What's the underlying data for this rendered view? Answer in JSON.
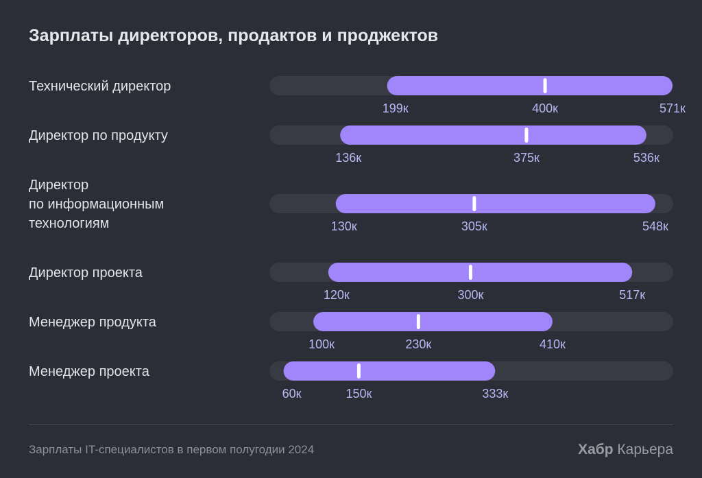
{
  "chart_data": {
    "type": "range-bar",
    "title": "Зарплаты директоров, продактов и проджектов",
    "unit_suffix": "к",
    "xlim": [
      30,
      572
    ],
    "rows": [
      {
        "label": [
          "Технический директор"
        ],
        "min": 199,
        "median": 400,
        "max": 571
      },
      {
        "label": [
          "Директор по продукту"
        ],
        "min": 136,
        "median": 375,
        "max": 536
      },
      {
        "label": [
          "Директор",
          "по информационным",
          "технологиям"
        ],
        "min": 130,
        "median": 305,
        "max": 548
      },
      {
        "label": [
          "Директор проекта"
        ],
        "min": 120,
        "median": 300,
        "max": 517
      },
      {
        "label": [
          "Менеджер продукта"
        ],
        "min": 100,
        "median": 230,
        "max": 410
      },
      {
        "label": [
          "Менеджер проекта"
        ],
        "min": 60,
        "median": 150,
        "max": 333
      }
    ],
    "colors": {
      "background": "#2b2e36",
      "track": "#383b44",
      "bar": "#a085fb",
      "median_marker": "#ffffff",
      "value_label": "#b6b9f2"
    }
  },
  "footer": {
    "source": "Зарплаты IT-специалистов в первом полугодии 2024",
    "brand_bold": "Хабр",
    "brand_rest": "Карьера"
  }
}
